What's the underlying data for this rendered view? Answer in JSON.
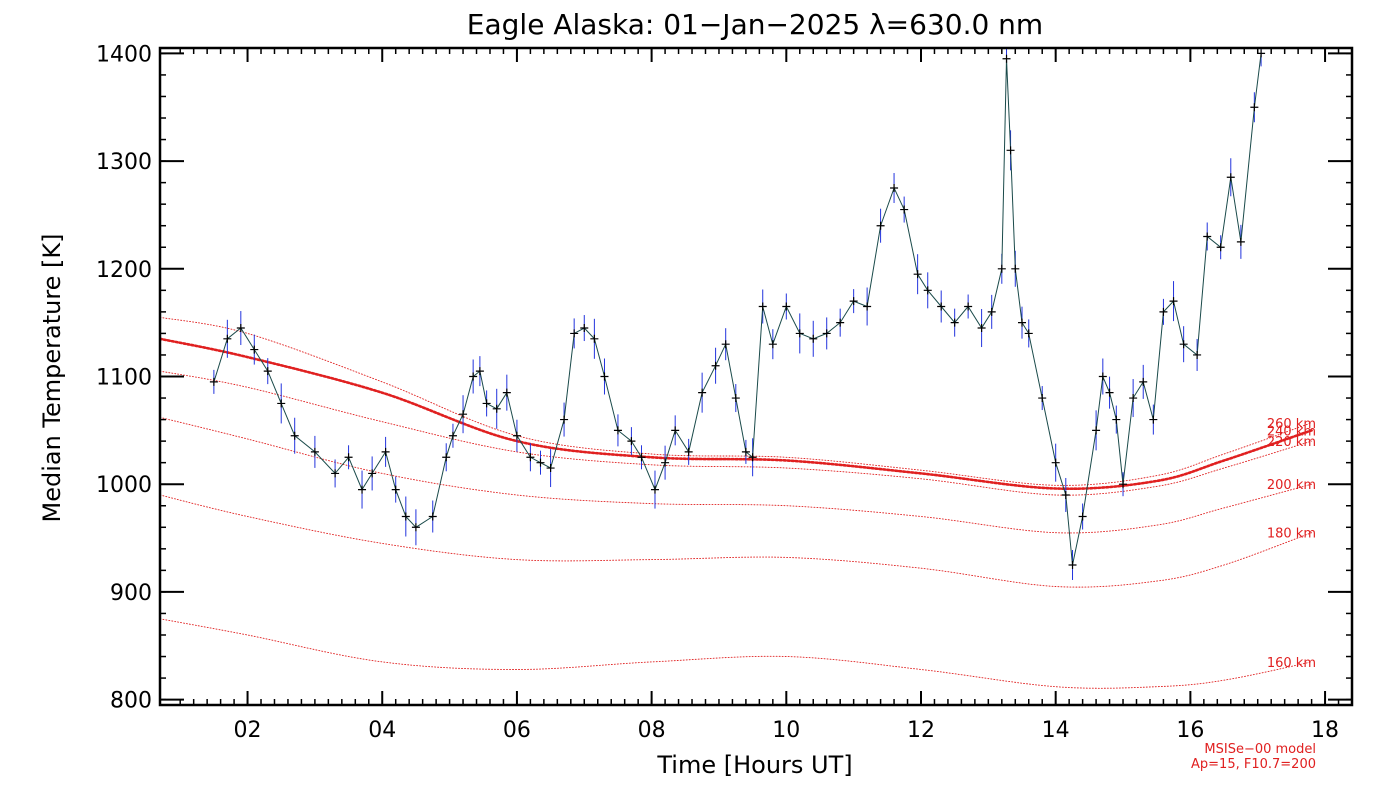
{
  "chart_data": {
    "type": "line",
    "title": "Eagle Alaska: 01−Jan−2025 λ=630.0 nm",
    "xlabel": "Time [Hours UT]",
    "ylabel": "Median Temperature [K]",
    "xlim": [
      0.7,
      18.4
    ],
    "ylim": [
      795,
      1405
    ],
    "x_ticks": [
      2,
      4,
      6,
      8,
      10,
      12,
      14,
      16,
      18
    ],
    "x_tick_labels": [
      "02",
      "04",
      "06",
      "08",
      "10",
      "12",
      "14",
      "16",
      "18"
    ],
    "y_ticks": [
      800,
      900,
      1000,
      1100,
      1200,
      1300,
      1400
    ],
    "y_tick_labels": [
      "800",
      "900",
      "1000",
      "1100",
      "1200",
      "1300",
      "1400"
    ],
    "footnote": [
      "MSISe−00 model",
      "Ap=15, F10.7=200"
    ],
    "series": [
      {
        "name": "Median Temperature",
        "color": "#000000",
        "error_color": "#2233dd",
        "x": [
          1.5,
          1.7,
          1.9,
          2.1,
          2.3,
          2.5,
          2.7,
          3.0,
          3.3,
          3.5,
          3.7,
          3.85,
          4.05,
          4.2,
          4.35,
          4.5,
          4.75,
          4.95,
          5.05,
          5.2,
          5.35,
          5.45,
          5.55,
          5.7,
          5.85,
          6.0,
          6.2,
          6.35,
          6.5,
          6.7,
          6.85,
          7.0,
          7.15,
          7.3,
          7.5,
          7.7,
          7.85,
          8.05,
          8.2,
          8.35,
          8.55,
          8.75,
          8.95,
          9.1,
          9.25,
          9.4,
          9.5,
          9.65,
          9.8,
          10.0,
          10.2,
          10.4,
          10.6,
          10.8,
          11.0,
          11.2,
          11.4,
          11.6,
          11.75,
          11.95,
          12.1,
          12.3,
          12.5,
          12.7,
          12.9,
          13.05,
          13.2,
          13.27,
          13.33,
          13.4,
          13.5,
          13.6,
          13.8,
          14.0,
          14.15,
          14.25,
          14.4,
          14.6,
          14.7,
          14.8,
          14.9,
          15.0,
          15.15,
          15.3,
          15.45,
          15.6,
          15.75,
          15.9,
          16.1,
          16.25,
          16.45,
          16.6,
          16.75,
          16.95,
          17.05
        ],
        "y": [
          1095,
          1135,
          1145,
          1125,
          1105,
          1075,
          1045,
          1030,
          1010,
          1025,
          995,
          1010,
          1030,
          995,
          970,
          960,
          970,
          1025,
          1045,
          1065,
          1100,
          1105,
          1075,
          1070,
          1085,
          1045,
          1025,
          1020,
          1015,
          1060,
          1140,
          1145,
          1135,
          1100,
          1050,
          1040,
          1025,
          995,
          1020,
          1050,
          1030,
          1085,
          1110,
          1130,
          1080,
          1030,
          1025,
          1165,
          1130,
          1165,
          1140,
          1135,
          1140,
          1150,
          1170,
          1165,
          1240,
          1275,
          1255,
          1195,
          1180,
          1165,
          1150,
          1165,
          1145,
          1160,
          1200,
          1395,
          1310,
          1200,
          1150,
          1140,
          1080,
          1020,
          990,
          925,
          970,
          1050,
          1100,
          1085,
          1060,
          1000,
          1080,
          1095,
          1060,
          1160,
          1170,
          1130,
          1120,
          1230,
          1220,
          1285,
          1225,
          1350,
          1400
        ]
      }
    ],
    "model_curves": [
      {
        "name": "160 km",
        "label": "160 km",
        "x": [
          0.7,
          2,
          4,
          6,
          8,
          10,
          12,
          14,
          15.5,
          16.5,
          17.8
        ],
        "y": [
          875,
          860,
          835,
          828,
          835,
          840,
          828,
          812,
          812,
          818,
          835
        ]
      },
      {
        "name": "180 km",
        "label": "180 km",
        "x": [
          0.7,
          2,
          4,
          6,
          8,
          10,
          12,
          14,
          15.5,
          16.5,
          17.8
        ],
        "y": [
          990,
          970,
          945,
          930,
          930,
          932,
          922,
          905,
          910,
          925,
          955
        ]
      },
      {
        "name": "200 km",
        "label": "200 km",
        "x": [
          0.7,
          2,
          4,
          6,
          8,
          10,
          12,
          14,
          15.5,
          16.5,
          17.8
        ],
        "y": [
          1062,
          1042,
          1010,
          990,
          982,
          980,
          970,
          955,
          962,
          978,
          1000
        ]
      },
      {
        "name": "220 km",
        "label": "220 km",
        "x": [
          0.7,
          2,
          4,
          6,
          8,
          10,
          12,
          14,
          15.5,
          16.5,
          17.8
        ],
        "y": [
          1105,
          1090,
          1058,
          1030,
          1018,
          1015,
          1005,
          990,
          998,
          1015,
          1040
        ]
      },
      {
        "name": "240 km",
        "label": "240 km",
        "x": [
          0.7,
          2,
          4,
          6,
          8,
          10,
          12,
          14,
          15.5,
          16.5,
          17.8
        ],
        "y": [
          1135,
          1118,
          1085,
          1040,
          1025,
          1022,
          1010,
          996,
          1003,
          1022,
          1050
        ]
      },
      {
        "name": "260 km",
        "label": "260 km",
        "x": [
          0.7,
          2,
          4,
          6,
          8,
          10,
          12,
          14,
          15.5,
          16.5,
          17.8
        ],
        "y": [
          1155,
          1140,
          1095,
          1045,
          1028,
          1025,
          1013,
          999,
          1008,
          1028,
          1057
        ]
      }
    ]
  }
}
